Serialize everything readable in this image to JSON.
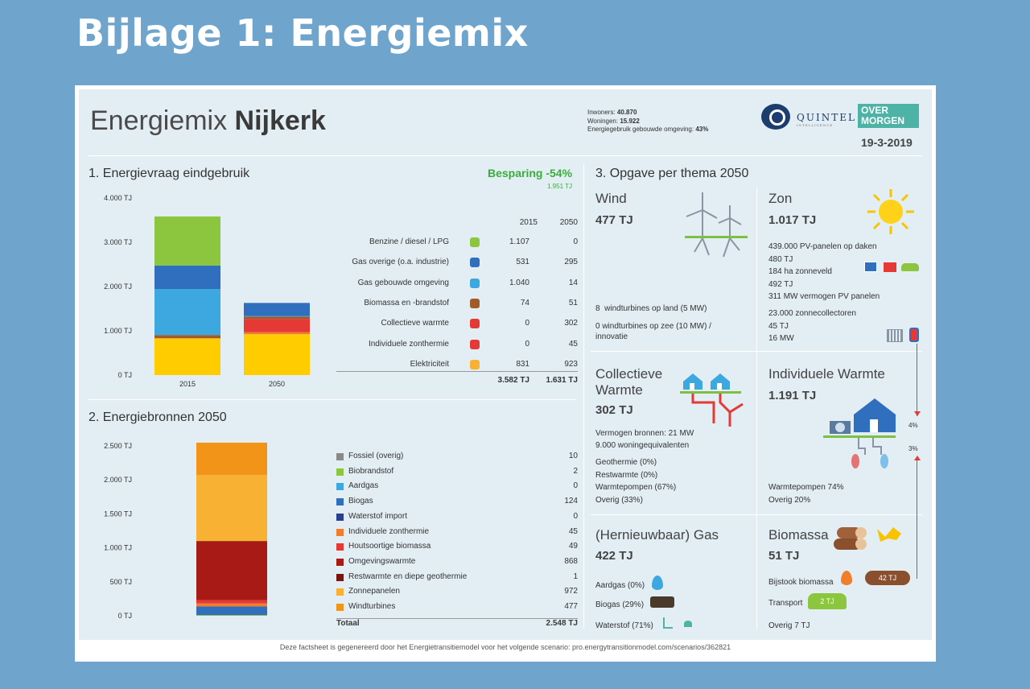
{
  "slide_title": "Bijlage 1: Energiemix",
  "header": {
    "title_light": "Energiemix",
    "title_bold": "Nijkerk",
    "inwoners_label": "Inwoners:",
    "inwoners_value": "40.870",
    "woningen_label": "Woningen:",
    "woningen_value": "15.922",
    "energie_label": "Energiegebruik gebouwde omgeving:",
    "energie_value": "43%",
    "logo_quintel": "QUINTEL",
    "logo_quintel_sub": "INTELLIGENCE",
    "logo_om_line1": "OVER",
    "logo_om_line2": "MORGEN",
    "date": "19-3-2019"
  },
  "section1": {
    "title": "1. Energievraag eindgebruik",
    "besparing": "Besparing -54%",
    "besparing_tj": "1.951 TJ",
    "col_2015": "2015",
    "col_2050": "2050",
    "rows": [
      {
        "label": "Benzine / diesel / LPG",
        "icon": "car-icon",
        "v2015": "1.107",
        "v2050": "0"
      },
      {
        "label": "Gas overige (o.a. industrie)",
        "icon": "flame-dark-icon",
        "v2015": "531",
        "v2050": "295"
      },
      {
        "label": "Gas gebouwde omgeving",
        "icon": "flame-light-icon",
        "v2015": "1.040",
        "v2050": "14"
      },
      {
        "label": "Biomassa en -brandstof",
        "icon": "logs-icon",
        "v2015": "74",
        "v2050": "51"
      },
      {
        "label": "Collectieve warmte",
        "icon": "thermometer-icon",
        "v2015": "0",
        "v2050": "302"
      },
      {
        "label": "Individuele zonthermie",
        "icon": "thermometer-icon",
        "v2015": "0",
        "v2050": "45"
      },
      {
        "label": "Elektriciteit",
        "icon": "lightning-icon",
        "v2015": "831",
        "v2050": "923"
      }
    ],
    "total_2015": "3.582 TJ",
    "total_2050": "1.631 TJ"
  },
  "section2": {
    "title": "2. Energiebronnen 2050",
    "total_label": "Totaal",
    "total_value": "2.548 TJ"
  },
  "section3": {
    "title": "3. Opgave per thema 2050",
    "wind": {
      "title": "Wind",
      "value": "477 TJ",
      "line1_count": "8",
      "line1_text": "windturbines op land (5 MW)",
      "line2a": "0 windturbines op zee (10 MW) /",
      "line2b": "innovatie"
    },
    "zon": {
      "title": "Zon",
      "value": "1.017 TJ",
      "l1": "439.000 PV-panelen op daken",
      "l2": "480 TJ",
      "l3": "184 ha zonneveld",
      "l4": "492 TJ",
      "l5": "311 MW vermogen PV panelen",
      "l6": "23.000 zonnecollectoren",
      "l7": "45 TJ",
      "l8": "16 MW"
    },
    "collectief": {
      "title1": "Collectieve",
      "title2": "Warmte",
      "value": "302 TJ",
      "l1": "Vermogen bronnen: 21 MW",
      "l2": "9.000 woningequivalenten",
      "l3": "Geothermie (0%)",
      "l4": "Restwarmte (0%)",
      "l5": "Warmtepompen (67%)",
      "l6": "Overig (33%)"
    },
    "individueel": {
      "title": "Individuele Warmte",
      "value": "1.191 TJ",
      "l1": "Warmtepompen 74%",
      "l2": "Overig 20%",
      "pct_top": "4%",
      "pct_bottom": "3%"
    },
    "gas": {
      "title": "(Hernieuwbaar) Gas",
      "value": "422 TJ",
      "l1": "Aardgas (0%)",
      "l2": "Biogas (29%)",
      "l3": "Waterstof (71%)"
    },
    "biomassa": {
      "title": "Biomassa",
      "value": "51 TJ",
      "l1": "Bijstook biomassa",
      "log_value": "42 TJ",
      "l2": "Transport",
      "car_value": "2 TJ",
      "l3": "Overig 7 TJ"
    }
  },
  "footer": "Deze factsheet is gegenereerd door het Energietransitiemodel voor het volgende scenario: pro.energytransitionmodel.com/scenarios/362821",
  "chart_data": [
    {
      "type": "bar",
      "title": "1. Energievraag eindgebruik",
      "stacked": true,
      "categories": [
        "2015",
        "2050"
      ],
      "ylim": [
        0,
        4000
      ],
      "yticks": [
        "0 TJ",
        "1.000 TJ",
        "2.000 TJ",
        "3.000 TJ",
        "4.000 TJ"
      ],
      "ytick_values": [
        0,
        1000,
        2000,
        3000,
        4000
      ],
      "series": [
        {
          "name": "Elektriciteit",
          "color": "#ffcc00",
          "values": [
            831,
            923
          ]
        },
        {
          "name": "Individuele zonthermie",
          "color": "#f07e2a",
          "values": [
            0,
            45
          ]
        },
        {
          "name": "Collectieve warmte",
          "color": "#e53935",
          "values": [
            0,
            302
          ]
        },
        {
          "name": "Biomassa en -brandstof",
          "color": "#a05a2c",
          "values": [
            74,
            51
          ]
        },
        {
          "name": "Gas gebouwde omgeving",
          "color": "#3da7e0",
          "values": [
            1040,
            14
          ]
        },
        {
          "name": "Gas overige (o.a. industrie)",
          "color": "#2f6fbe",
          "values": [
            531,
            295
          ]
        },
        {
          "name": "Benzine / diesel / LPG",
          "color": "#8cc63f",
          "values": [
            1107,
            0
          ]
        }
      ]
    },
    {
      "type": "bar",
      "title": "2. Energiebronnen 2050",
      "stacked": true,
      "categories": [
        ""
      ],
      "ylim": [
        0,
        2500
      ],
      "yticks": [
        "0 TJ",
        "500 TJ",
        "1.000 TJ",
        "1.500 TJ",
        "2.000 TJ",
        "2.500 TJ"
      ],
      "ytick_values": [
        0,
        500,
        1000,
        1500,
        2000,
        2500
      ],
      "series": [
        {
          "name": "Fossiel (overig)",
          "color": "#8a8a8a",
          "values": [
            10
          ]
        },
        {
          "name": "Biobrandstof",
          "color": "#8cc63f",
          "values": [
            2
          ]
        },
        {
          "name": "Aardgas",
          "color": "#3da7e0",
          "values": [
            0
          ]
        },
        {
          "name": "Biogas",
          "color": "#2f6fbe",
          "values": [
            124
          ]
        },
        {
          "name": "Waterstof import",
          "color": "#2b3f8f",
          "values": [
            0
          ]
        },
        {
          "name": "Individuele zonthermie",
          "color": "#f07e2a",
          "values": [
            45
          ]
        },
        {
          "name": "Houtsoortige biomassa",
          "color": "#e53935",
          "values": [
            49
          ]
        },
        {
          "name": "Omgevingswarmte",
          "color": "#a81a16",
          "values": [
            868
          ]
        },
        {
          "name": "Restwarmte en diepe geothermie",
          "color": "#7a1410",
          "values": [
            1
          ]
        },
        {
          "name": "Zonnepanelen",
          "color": "#f8b133",
          "values": [
            972
          ]
        },
        {
          "name": "Windturbines",
          "color": "#f29418",
          "values": [
            477
          ]
        }
      ]
    }
  ]
}
